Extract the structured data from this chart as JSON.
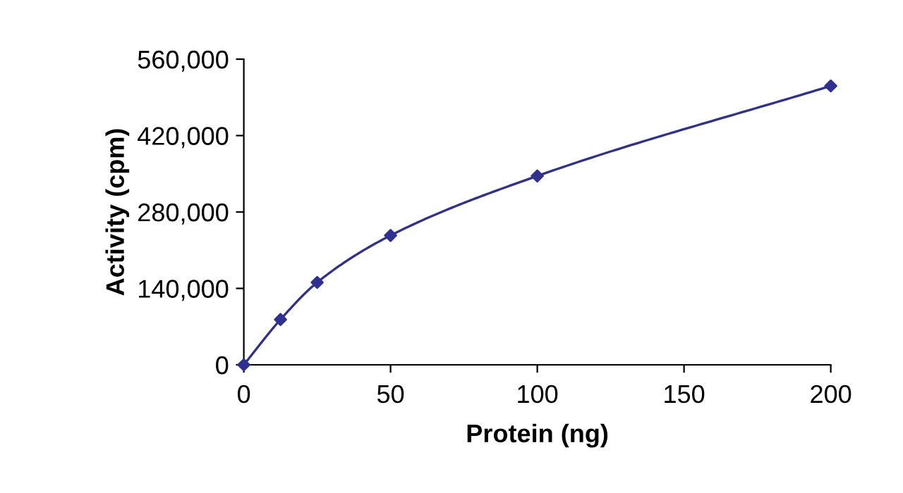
{
  "chart_data": {
    "type": "line",
    "xlabel": "Protein (ng)",
    "ylabel": "Activity (cpm)",
    "x": [
      0,
      12.5,
      25,
      50,
      100,
      200
    ],
    "series": [
      {
        "color": "#2e3192",
        "values": [
          0,
          83000,
          151000,
          237000,
          346000,
          511000
        ]
      }
    ],
    "xlim": [
      0,
      200
    ],
    "xticks": [
      0,
      50,
      100,
      150,
      200
    ],
    "ylim": [
      0,
      560000
    ],
    "yticks": [
      0,
      {
        "value": 140000,
        "label": "140,000"
      },
      {
        "value": 280000,
        "label": "280,000"
      },
      {
        "value": 420000,
        "label": "420,000"
      },
      {
        "value": 560000,
        "label": "560,000"
      }
    ],
    "marker": "diamond",
    "line_style": "solid",
    "grid": false
  }
}
